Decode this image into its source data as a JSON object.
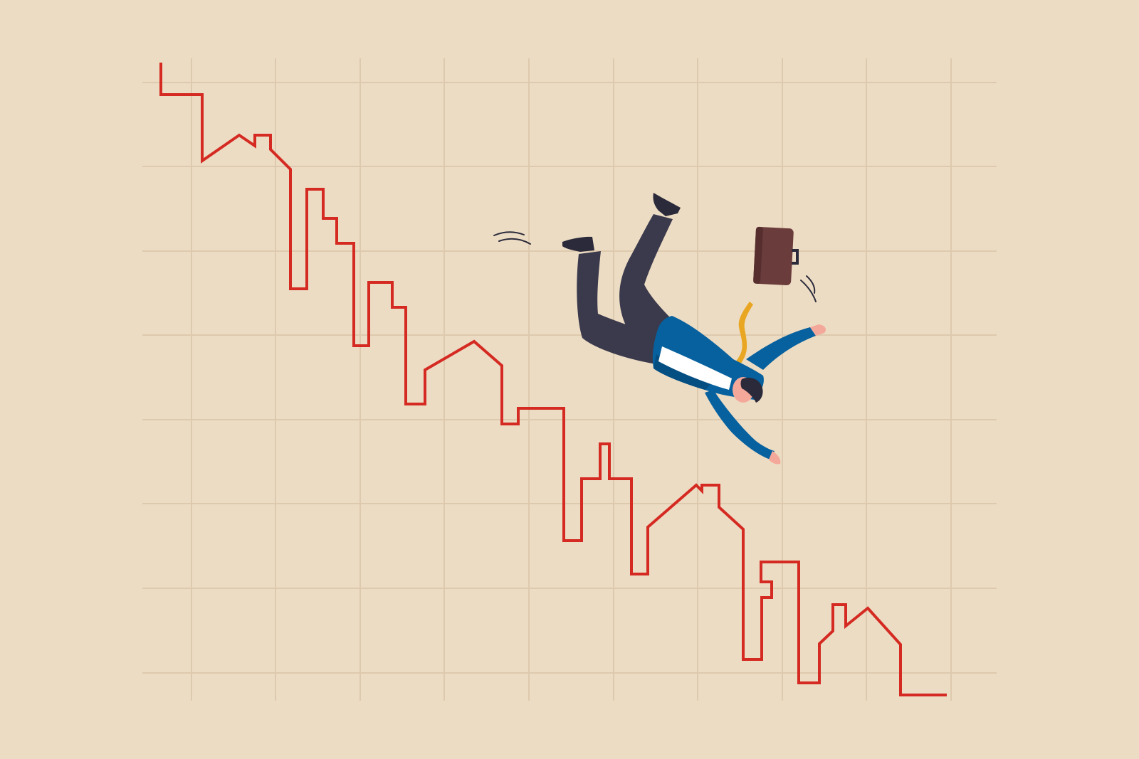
{
  "illustration": {
    "subject": "",
    "icons": [
      "businessman-falling",
      "briefcase-icon",
      "house-skyline-chart-line"
    ]
  },
  "colors": {
    "background": "#EDDCC4",
    "grid": "#DDC9AD",
    "chart_line": "#D42A22",
    "suit_jacket": "#07619E",
    "suit_jacket_shade": "#054E81",
    "trousers": "#3A3A4C",
    "shoes": "#2A2A3A",
    "skin": "#F4A89A",
    "hair": "#2A2A3A",
    "tie": "#E9A623",
    "shirt": "#FFFFFF",
    "briefcase": "#6B3C3C",
    "briefcase_shade": "#562E2E",
    "motion_lines": "#2A2A3A"
  }
}
